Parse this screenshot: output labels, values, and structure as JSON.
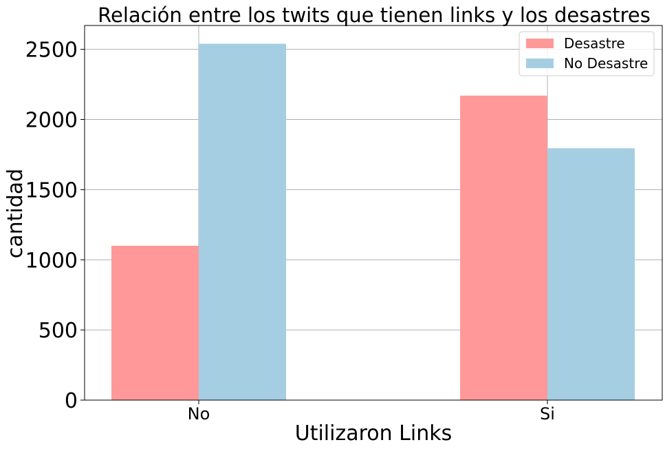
{
  "chart_data": {
    "type": "bar",
    "title": "Relación entre los twits que tienen links y los desastres",
    "xlabel": "Utilizaron Links",
    "ylabel": "cantidad",
    "categories": [
      "No",
      "Si"
    ],
    "series": [
      {
        "name": "Desastre",
        "values": [
          1100,
          2170
        ],
        "color": "#ff9999"
      },
      {
        "name": "No Desastre",
        "values": [
          2540,
          1795
        ],
        "color": "#a6cee3"
      }
    ],
    "ylim": [
      0,
      2670
    ],
    "yticks": [
      0,
      500,
      1000,
      1500,
      2000,
      2500
    ],
    "grid": true,
    "legend_position": "top-right"
  }
}
